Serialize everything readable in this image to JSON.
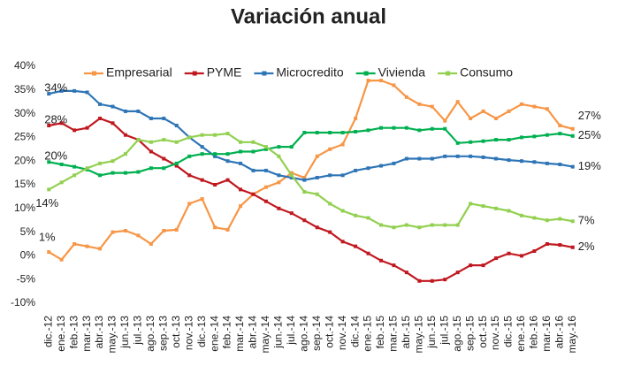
{
  "chart_data": {
    "type": "line",
    "title": "Variación anual",
    "categories": [
      "dic.-12",
      "ene.-13",
      "feb.-13",
      "mar.-13",
      "abr.-13",
      "may.-13",
      "jun.-13",
      "jul.-13",
      "ago.-13",
      "sep.-13",
      "oct.-13",
      "nov.-13",
      "dic.-13",
      "ene.-14",
      "feb.-14",
      "mar.-14",
      "abr.-14",
      "may.-14",
      "jun.-14",
      "jul.-14",
      "ago.-14",
      "sep.-14",
      "oct.-14",
      "nov.-14",
      "dic.-14",
      "ene.-15",
      "feb.-15",
      "mar.-15",
      "abr.-15",
      "may.-15",
      "jun.-15",
      "jul.-15",
      "ago.-15",
      "sep.-15",
      "oct.-15",
      "nov.-15",
      "dic.-15",
      "ene.-16",
      "feb.-16",
      "mar.-16",
      "abr.-16",
      "may.-16"
    ],
    "series": [
      {
        "name": "Empresarial",
        "color": "#f79646",
        "values": [
          0.8,
          -0.8,
          2.5,
          2,
          1.5,
          5,
          5.3,
          4.3,
          2.5,
          5.3,
          5.5,
          11,
          12,
          6,
          5.5,
          10.5,
          13,
          14.5,
          15.5,
          17.5,
          16.5,
          21,
          22.5,
          23.5,
          29,
          37,
          37,
          36,
          33.5,
          32,
          31.5,
          28.5,
          32.5,
          29,
          30.5,
          29,
          30.5,
          32,
          31.5,
          31,
          27.5,
          26.8
        ],
        "value_labels": [
          "1%",
          null,
          null,
          null,
          null,
          null,
          null,
          null,
          null,
          null,
          null,
          null,
          null,
          null,
          null,
          null,
          null,
          null,
          null,
          null,
          null,
          null,
          null,
          null,
          null,
          null,
          null,
          null,
          null,
          null,
          null,
          null,
          null,
          null,
          null,
          null,
          null,
          null,
          null,
          null,
          null,
          "27%"
        ]
      },
      {
        "name": "PYME",
        "color": "#c0181f",
        "values": [
          27.5,
          28,
          26.5,
          27,
          29,
          28,
          25.5,
          24.5,
          22,
          20.5,
          19,
          17,
          16,
          15,
          16,
          14,
          13,
          11.5,
          10,
          9,
          7.5,
          6,
          5,
          3,
          2,
          0.5,
          -1,
          -2,
          -3.5,
          -5.3,
          -5.3,
          -5,
          -3.5,
          -2,
          -2,
          -0.5,
          0.5,
          0,
          1,
          2.5,
          2.3,
          1.8
        ],
        "value_labels": [
          "28%",
          null,
          null,
          null,
          null,
          null,
          null,
          null,
          null,
          null,
          null,
          null,
          null,
          null,
          null,
          null,
          null,
          null,
          null,
          null,
          null,
          null,
          null,
          null,
          null,
          null,
          null,
          null,
          null,
          null,
          null,
          null,
          null,
          null,
          null,
          null,
          null,
          null,
          null,
          null,
          null,
          "2%"
        ]
      },
      {
        "name": "Microcredito",
        "color": "#2e75b6",
        "values": [
          34.2,
          34.8,
          34.8,
          34.5,
          32,
          31.5,
          30.5,
          30.5,
          29,
          29,
          27.5,
          25,
          23,
          21,
          20,
          19.5,
          18,
          18,
          17,
          16.5,
          16,
          16.5,
          17,
          17,
          18,
          18.5,
          19,
          19.5,
          20.5,
          20.5,
          20.5,
          21,
          21,
          21,
          20.8,
          20.5,
          20.2,
          20,
          19.8,
          19.5,
          19.3,
          18.8
        ],
        "value_labels": [
          "34%",
          null,
          null,
          null,
          null,
          null,
          null,
          null,
          null,
          null,
          null,
          null,
          null,
          null,
          null,
          null,
          null,
          null,
          null,
          null,
          null,
          null,
          null,
          null,
          null,
          null,
          null,
          null,
          null,
          null,
          null,
          null,
          null,
          null,
          null,
          null,
          null,
          null,
          null,
          null,
          null,
          "19%"
        ]
      },
      {
        "name": "Vivienda",
        "color": "#00b050",
        "values": [
          19.8,
          19.3,
          18.8,
          18.2,
          17,
          17.5,
          17.5,
          17.7,
          18.5,
          18.5,
          19.5,
          21,
          21.5,
          21.5,
          21.5,
          22,
          22,
          22.5,
          23,
          23,
          26,
          26,
          26,
          26,
          26.2,
          26.5,
          27,
          27,
          27,
          26.5,
          26.8,
          26.8,
          23.8,
          24,
          24.2,
          24.5,
          24.5,
          25,
          25.2,
          25.5,
          25.8,
          25.3
        ],
        "value_labels": [
          "20%",
          null,
          null,
          null,
          null,
          null,
          null,
          null,
          null,
          null,
          null,
          null,
          null,
          null,
          null,
          null,
          null,
          null,
          null,
          null,
          null,
          null,
          null,
          null,
          null,
          null,
          null,
          null,
          null,
          null,
          null,
          null,
          null,
          null,
          null,
          null,
          null,
          null,
          null,
          null,
          null,
          "25%"
        ]
      },
      {
        "name": "Consumo",
        "color": "#92d050",
        "values": [
          14,
          15.5,
          17,
          18.5,
          19.5,
          20,
          21.5,
          24.5,
          24,
          24.5,
          24,
          25,
          25.5,
          25.5,
          25.8,
          24,
          24,
          23,
          21,
          17,
          13.5,
          13,
          11,
          9.5,
          8.5,
          8,
          6.5,
          6,
          6.5,
          6,
          6.5,
          6.5,
          6.5,
          11,
          10.5,
          10,
          9.5,
          8.5,
          8,
          7.5,
          7.8,
          7.3
        ],
        "value_labels": [
          "14%",
          null,
          null,
          null,
          null,
          null,
          null,
          null,
          null,
          null,
          null,
          null,
          null,
          null,
          null,
          null,
          null,
          null,
          null,
          null,
          null,
          null,
          null,
          null,
          null,
          null,
          null,
          null,
          null,
          null,
          null,
          null,
          null,
          null,
          null,
          null,
          null,
          null,
          null,
          null,
          null,
          "7%"
        ]
      }
    ],
    "ylim": [
      -10,
      40
    ],
    "yticks": [
      {
        "value": -10,
        "label": "-10%"
      },
      {
        "value": -5,
        "label": "-5%"
      },
      {
        "value": 0,
        "label": "0%"
      },
      {
        "value": 5,
        "label": "5%"
      },
      {
        "value": 10,
        "label": "10%"
      },
      {
        "value": 15,
        "label": "15%"
      },
      {
        "value": 20,
        "label": "20%"
      },
      {
        "value": 25,
        "label": "25%"
      },
      {
        "value": 30,
        "label": "30%"
      },
      {
        "value": 35,
        "label": "35%"
      },
      {
        "value": 40,
        "label": "40%"
      }
    ],
    "grid": false,
    "legend": "top"
  }
}
